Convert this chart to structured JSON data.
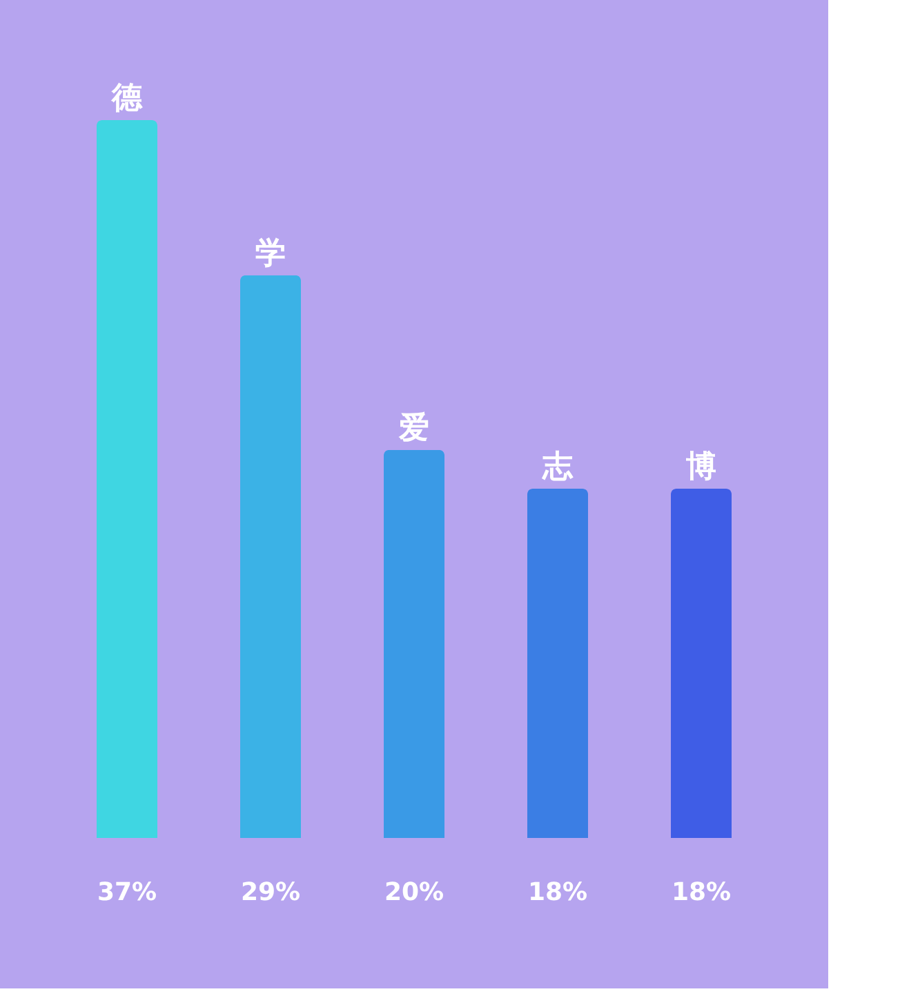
{
  "chart_data": {
    "type": "bar",
    "categories": [
      "德",
      "学",
      "爱",
      "志",
      "博"
    ],
    "values": [
      37,
      29,
      20,
      18,
      18
    ],
    "value_labels": [
      "37%",
      "29%",
      "20%",
      "18%",
      "18%"
    ],
    "colors": [
      "#3fd6e2",
      "#3bb2e6",
      "#3a9ae6",
      "#3b7ee4",
      "#3f5de6"
    ]
  }
}
